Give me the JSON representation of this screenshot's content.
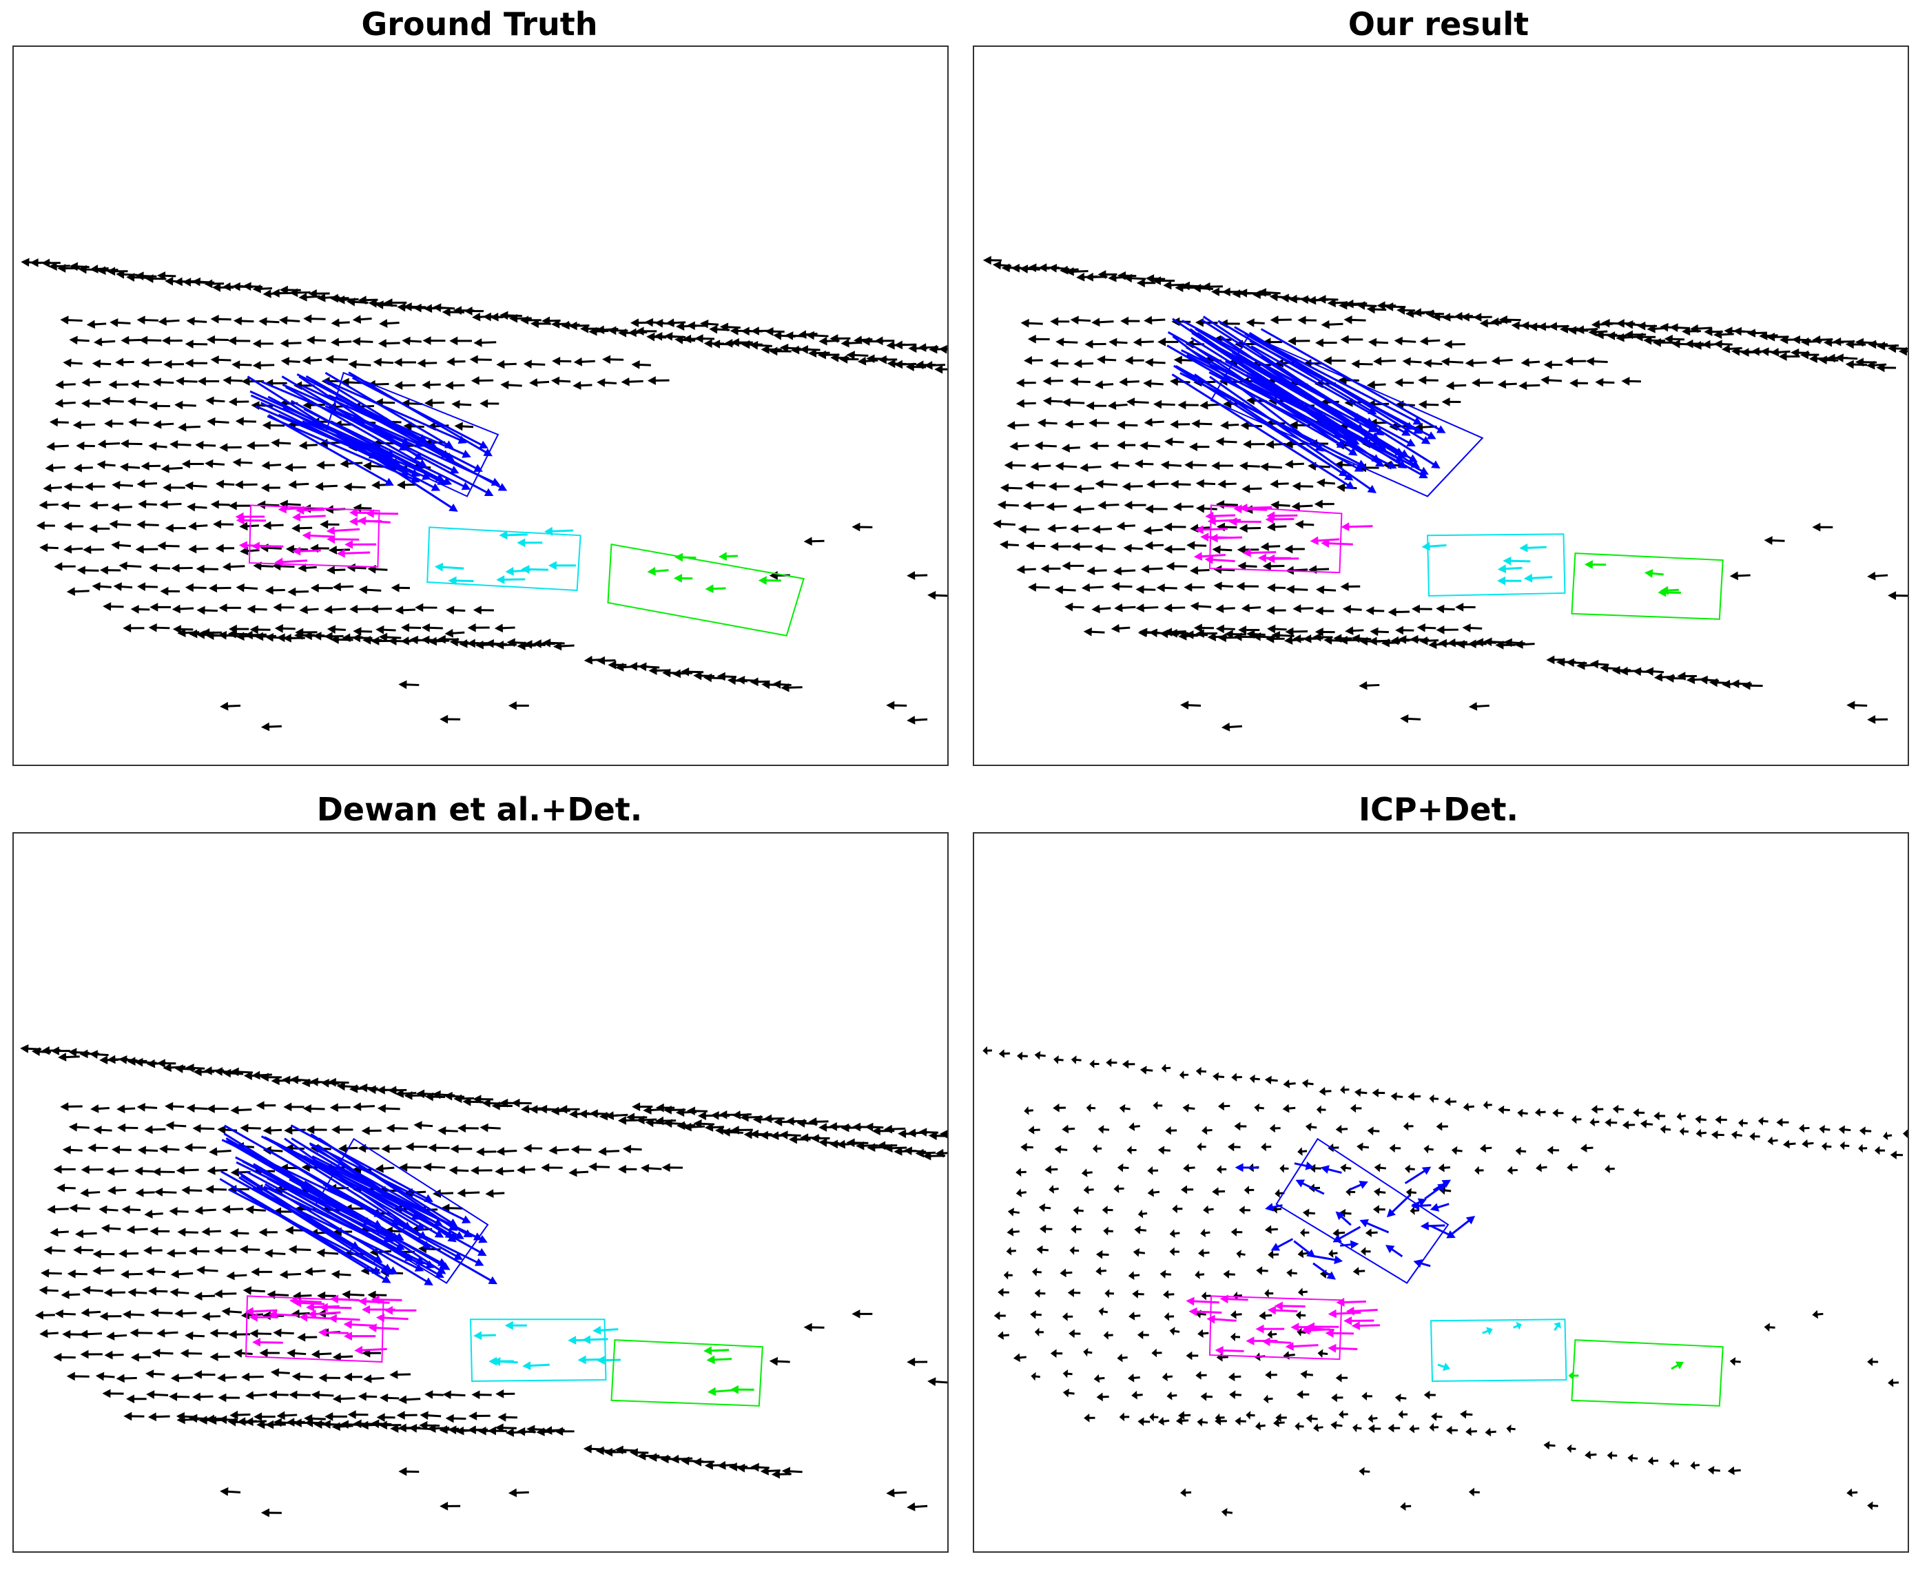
{
  "figure": {
    "background": "#ffffff",
    "frame_color": "#333333",
    "colors": {
      "background_flow": "#000000",
      "blue_object": "#0000ff",
      "magenta_object": "#ff00ff",
      "cyan_object": "#00e5ee",
      "green_object": "#00ee00"
    }
  },
  "chart_data": [
    {
      "type": "scatter",
      "title": "Ground Truth",
      "xlabel": "",
      "ylabel": "",
      "grid": false,
      "axes": "hidden",
      "series": [
        {
          "key": "background",
          "color": "#000000",
          "direction": "left",
          "values": "dense lidar scene-flow vectors, all pointing left"
        },
        {
          "key": "blue",
          "color": "#0000ff",
          "direction": "down-right",
          "values": "long vectors inside rotated box"
        },
        {
          "key": "magenta",
          "color": "#ff00ff",
          "direction": "left",
          "values": "vectors inside box"
        },
        {
          "key": "cyan",
          "color": "#00e5ee",
          "direction": "left",
          "values": "sparse vectors inside box"
        },
        {
          "key": "green",
          "color": "#00ee00",
          "direction": "left",
          "values": "sparse vectors inside box"
        }
      ]
    },
    {
      "type": "scatter",
      "title": "Our result",
      "xlabel": "",
      "ylabel": "",
      "grid": false,
      "axes": "hidden",
      "series": [
        {
          "key": "background",
          "color": "#000000",
          "direction": "left",
          "values": "dense lidar scene-flow vectors, all pointing left"
        },
        {
          "key": "blue",
          "color": "#0000ff",
          "direction": "down-right",
          "values": "long vectors inside rotated box"
        },
        {
          "key": "magenta",
          "color": "#ff00ff",
          "direction": "left",
          "values": "vectors inside box"
        },
        {
          "key": "cyan",
          "color": "#00e5ee",
          "direction": "left",
          "values": "sparse vectors inside box"
        },
        {
          "key": "green",
          "color": "#00ee00",
          "direction": "left",
          "values": "sparse vectors inside box"
        }
      ]
    },
    {
      "type": "scatter",
      "title": "Dewan et al.+Det.",
      "xlabel": "",
      "ylabel": "",
      "grid": false,
      "axes": "hidden",
      "series": [
        {
          "key": "background",
          "color": "#000000",
          "direction": "left",
          "values": "dense lidar scene-flow vectors, all pointing left"
        },
        {
          "key": "blue",
          "color": "#0000ff",
          "direction": "down-right",
          "values": "long vectors inside rotated box"
        },
        {
          "key": "magenta",
          "color": "#ff00ff",
          "direction": "left",
          "values": "vectors inside box"
        },
        {
          "key": "cyan",
          "color": "#00e5ee",
          "direction": "left",
          "values": "sparse vectors inside box"
        },
        {
          "key": "green",
          "color": "#00ee00",
          "direction": "left",
          "values": "sparse vectors inside box"
        }
      ]
    },
    {
      "type": "scatter",
      "title": "ICP+Det.",
      "xlabel": "",
      "ylabel": "",
      "grid": false,
      "axes": "hidden",
      "series": [
        {
          "key": "background",
          "color": "#000000",
          "direction": "left",
          "values": "sparse short vectors, pointing left"
        },
        {
          "key": "blue",
          "color": "#0000ff",
          "direction": "mixed",
          "values": "short scattered vectors inside rotated box"
        },
        {
          "key": "magenta",
          "color": "#ff00ff",
          "direction": "left",
          "values": "vectors inside box"
        },
        {
          "key": "cyan",
          "color": "#00e5ee",
          "direction": "mixed",
          "values": "few short vectors inside box"
        },
        {
          "key": "green",
          "color": "#00ee00",
          "direction": "mixed",
          "values": "few short vectors inside box"
        }
      ]
    }
  ]
}
